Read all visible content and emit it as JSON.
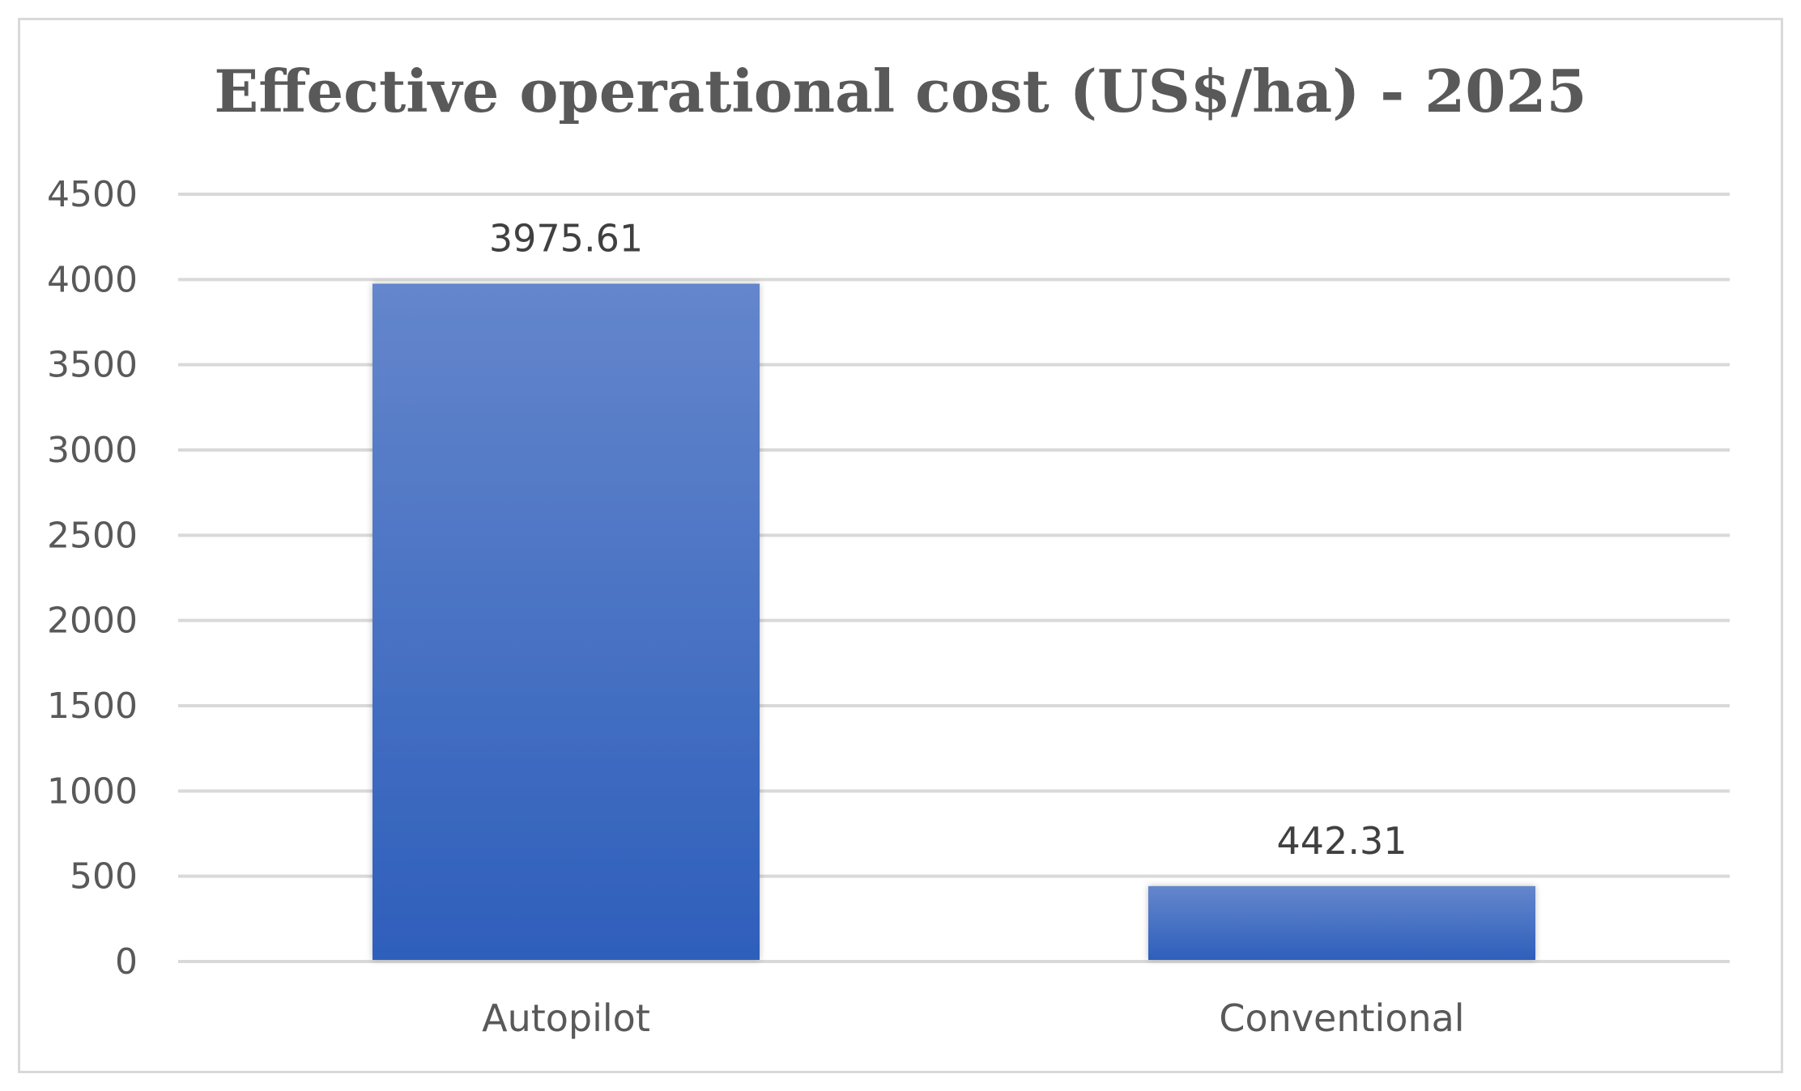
{
  "chart_data": {
    "type": "bar",
    "title": "Effective operational cost  (US$/ha)  - 2025",
    "xlabel": "",
    "ylabel": "",
    "categories": [
      "Autopilot",
      "Conventional"
    ],
    "values": [
      3975.61,
      442.31
    ],
    "data_labels": [
      "3975.61",
      "442.31"
    ],
    "ylim": [
      0,
      4500
    ],
    "yticks": [
      0,
      500,
      1000,
      1500,
      2000,
      2500,
      3000,
      3500,
      4000,
      4500
    ],
    "grid": true,
    "legend": "none",
    "bar_color_top": "#6486cc",
    "bar_color_bottom": "#2e5fbb",
    "gridline_color": "#d9d9d9"
  }
}
